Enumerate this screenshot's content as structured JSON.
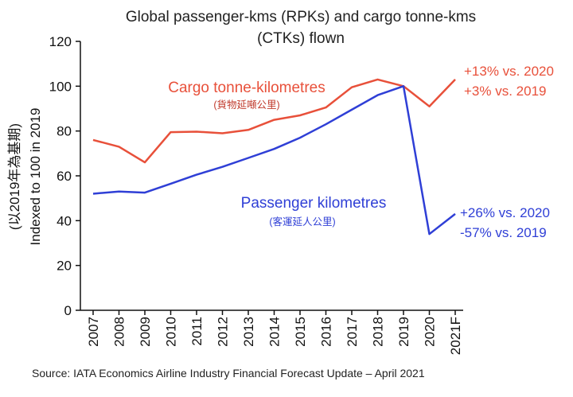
{
  "chart_data": {
    "type": "line",
    "title_line1": "Global passenger-kms (RPKs) and cargo tonne-kms",
    "title_line2": "(CTKs) flown",
    "ylabel_line1": "(以2019年為基期)",
    "ylabel_line2": "Indexed to 100 in 2019",
    "ylim": [
      0,
      120
    ],
    "yticks": [
      "0",
      "20",
      "40",
      "60",
      "80",
      "100",
      "120"
    ],
    "categories": [
      "2007",
      "2008",
      "2009",
      "2010",
      "2011",
      "2012",
      "2013",
      "2014",
      "2015",
      "2016",
      "2017",
      "2018",
      "2019",
      "2020",
      "2021F"
    ],
    "series": [
      {
        "name": "Cargo tonne-kilometres",
        "name_zh": "(貨物延噸公里)",
        "color": "#e8503a",
        "values": [
          76,
          73,
          66,
          79.5,
          79.7,
          79,
          80.5,
          85,
          87,
          90.5,
          99.5,
          103,
          100,
          91,
          103
        ]
      },
      {
        "name": "Passenger kilometres",
        "name_zh": "(客運延人公里)",
        "color": "#2f3fd6",
        "values": [
          52,
          53,
          52.5,
          56.5,
          60.5,
          64,
          68,
          72,
          77,
          83,
          89.5,
          96,
          100,
          34,
          43
        ]
      }
    ],
    "annotations": {
      "cargo_line1": "+13% vs. 2020",
      "cargo_line2": "+3% vs. 2019",
      "pax_line1": "+26% vs. 2020",
      "pax_line2": "-57% vs. 2019"
    },
    "source": "Source: IATA Economics Airline Industry Financial Forecast Update – April 2021"
  }
}
